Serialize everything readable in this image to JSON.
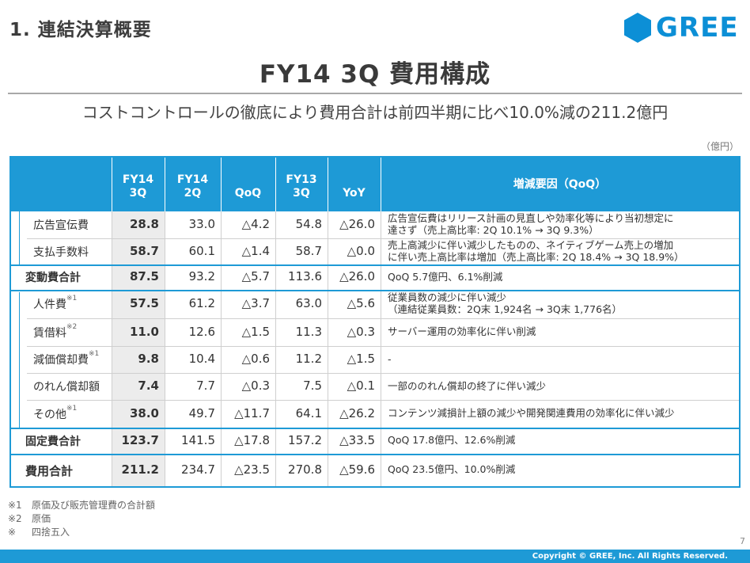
{
  "slide": {
    "section_title": "1. 連結決算概要",
    "logo_text": "GREE",
    "title": "FY14 3Q 費用構成",
    "subtitle": "コストコントロールの徹底により費用合計は前四半期に比べ10.0%減の211.2億円",
    "unit": "（億円）",
    "page_number": "7",
    "copyright": "Copyright © GREE, Inc. All Rights Reserved."
  },
  "table": {
    "headers": [
      "FY14\n3Q",
      "FY14\n2Q",
      "QoQ",
      "FY13\n3Q",
      "YoY",
      "増減要因（QoQ）"
    ],
    "rows": [
      {
        "label": "広告宣伝費",
        "note": "",
        "values": [
          "28.8",
          "33.0",
          "△4.2",
          "54.8",
          "△26.0"
        ],
        "factor": [
          "広告宣伝費はリリース計画の見直しや効率化等により当初想定に",
          "達さず（売上高比率: 2Q 10.1% → 3Q 9.3%）"
        ]
      },
      {
        "label": "支払手数料",
        "note": "",
        "values": [
          "58.7",
          "60.1",
          "△1.4",
          "58.7",
          "△0.0"
        ],
        "factor": [
          "売上高減少に伴い減少したものの、ネイティブゲーム売上の増加",
          "に伴い売上高比率は増加（売上高比率: 2Q 18.4% → 3Q 18.9%）"
        ]
      },
      {
        "label": "変動費合計",
        "note": "",
        "values": [
          "87.5",
          "93.2",
          "△5.7",
          "113.6",
          "△26.0"
        ],
        "factor": [
          "QoQ 5.7億円、6.1%削減"
        ]
      },
      {
        "label": "人件費",
        "note": "※1",
        "values": [
          "57.5",
          "61.2",
          "△3.7",
          "63.0",
          "△5.6"
        ],
        "factor": [
          "従業員数の減少に伴い減少",
          "（連結従業員数：2Q末 1,924名 → 3Q末 1,776名）"
        ]
      },
      {
        "label": "賃借料",
        "note": "※2",
        "values": [
          "11.0",
          "12.6",
          "△1.5",
          "11.3",
          "△0.3"
        ],
        "factor": [
          "サーバー運用の効率化に伴い削減"
        ]
      },
      {
        "label": "減価償却費",
        "note": "※1",
        "values": [
          "9.8",
          "10.4",
          "△0.6",
          "11.2",
          "△1.5"
        ],
        "factor": [
          "-"
        ]
      },
      {
        "label": "のれん償却額",
        "note": "",
        "values": [
          "7.4",
          "7.7",
          "△0.3",
          "7.5",
          "△0.1"
        ],
        "factor": [
          "一部ののれん償却の終了に伴い減少"
        ]
      },
      {
        "label": "その他",
        "note": "※1",
        "values": [
          "38.0",
          "49.7",
          "△11.7",
          "64.1",
          "△26.2"
        ],
        "factor": [
          "コンテンツ減損計上額の減少や開発関連費用の効率化に伴い減少"
        ]
      },
      {
        "label": "固定費合計",
        "note": "",
        "values": [
          "123.7",
          "141.5",
          "△17.8",
          "157.2",
          "△33.5"
        ],
        "factor": [
          "QoQ 17.8億円、12.6%削減"
        ]
      },
      {
        "label": "費用合計",
        "note": "",
        "values": [
          "211.2",
          "234.7",
          "△23.5",
          "270.8",
          "△59.6"
        ],
        "factor": [
          "QoQ 23.5億円、10.0%削減"
        ]
      }
    ]
  },
  "notes": [
    {
      "mark": "※1",
      "text": "原価及び販売管理費の合計額"
    },
    {
      "mark": "※2",
      "text": "原価"
    },
    {
      "mark": "※",
      "text": "四捨五入"
    }
  ],
  "colors": {
    "accent": "#1e9ad6",
    "logo": "#0c8fd6",
    "highlight_column": "#ececec"
  }
}
